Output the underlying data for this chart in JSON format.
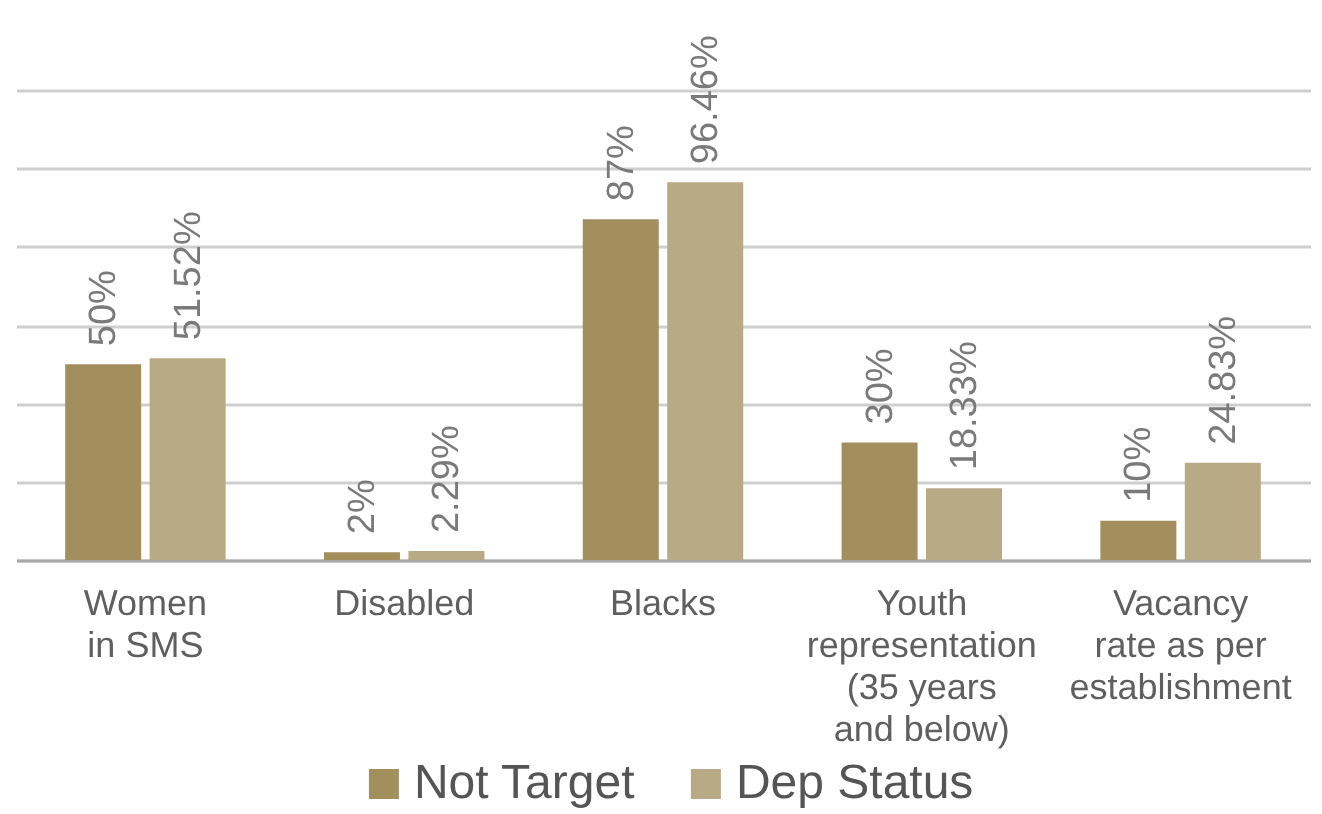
{
  "chart_data": {
    "type": "bar",
    "categories": [
      "Women\nin SMS",
      "Disabled",
      "Blacks",
      "Youth\nrepresentation\n(35 years\nand below)",
      "Vacancy\nrate as per\nestablishment"
    ],
    "series": [
      {
        "name": "Not Target",
        "color": "#a38f5e",
        "values": [
          50,
          2,
          87,
          30,
          10
        ],
        "value_labels": [
          "50%",
          "2%",
          "87%",
          "30%",
          "10%"
        ]
      },
      {
        "name": "Dep Status",
        "color": "#b9aa86",
        "values": [
          51.52,
          2.29,
          96.46,
          18.33,
          24.83
        ],
        "value_labels": [
          "51.52%",
          "2.29%",
          "96.46%",
          "18.33%",
          "24.83%"
        ]
      }
    ],
    "ylim": [
      0,
      120
    ],
    "yticks": [
      0,
      20,
      40,
      60,
      80,
      100,
      120
    ],
    "tick_labels": "x",
    "grid": "y",
    "legend": "bottom"
  }
}
